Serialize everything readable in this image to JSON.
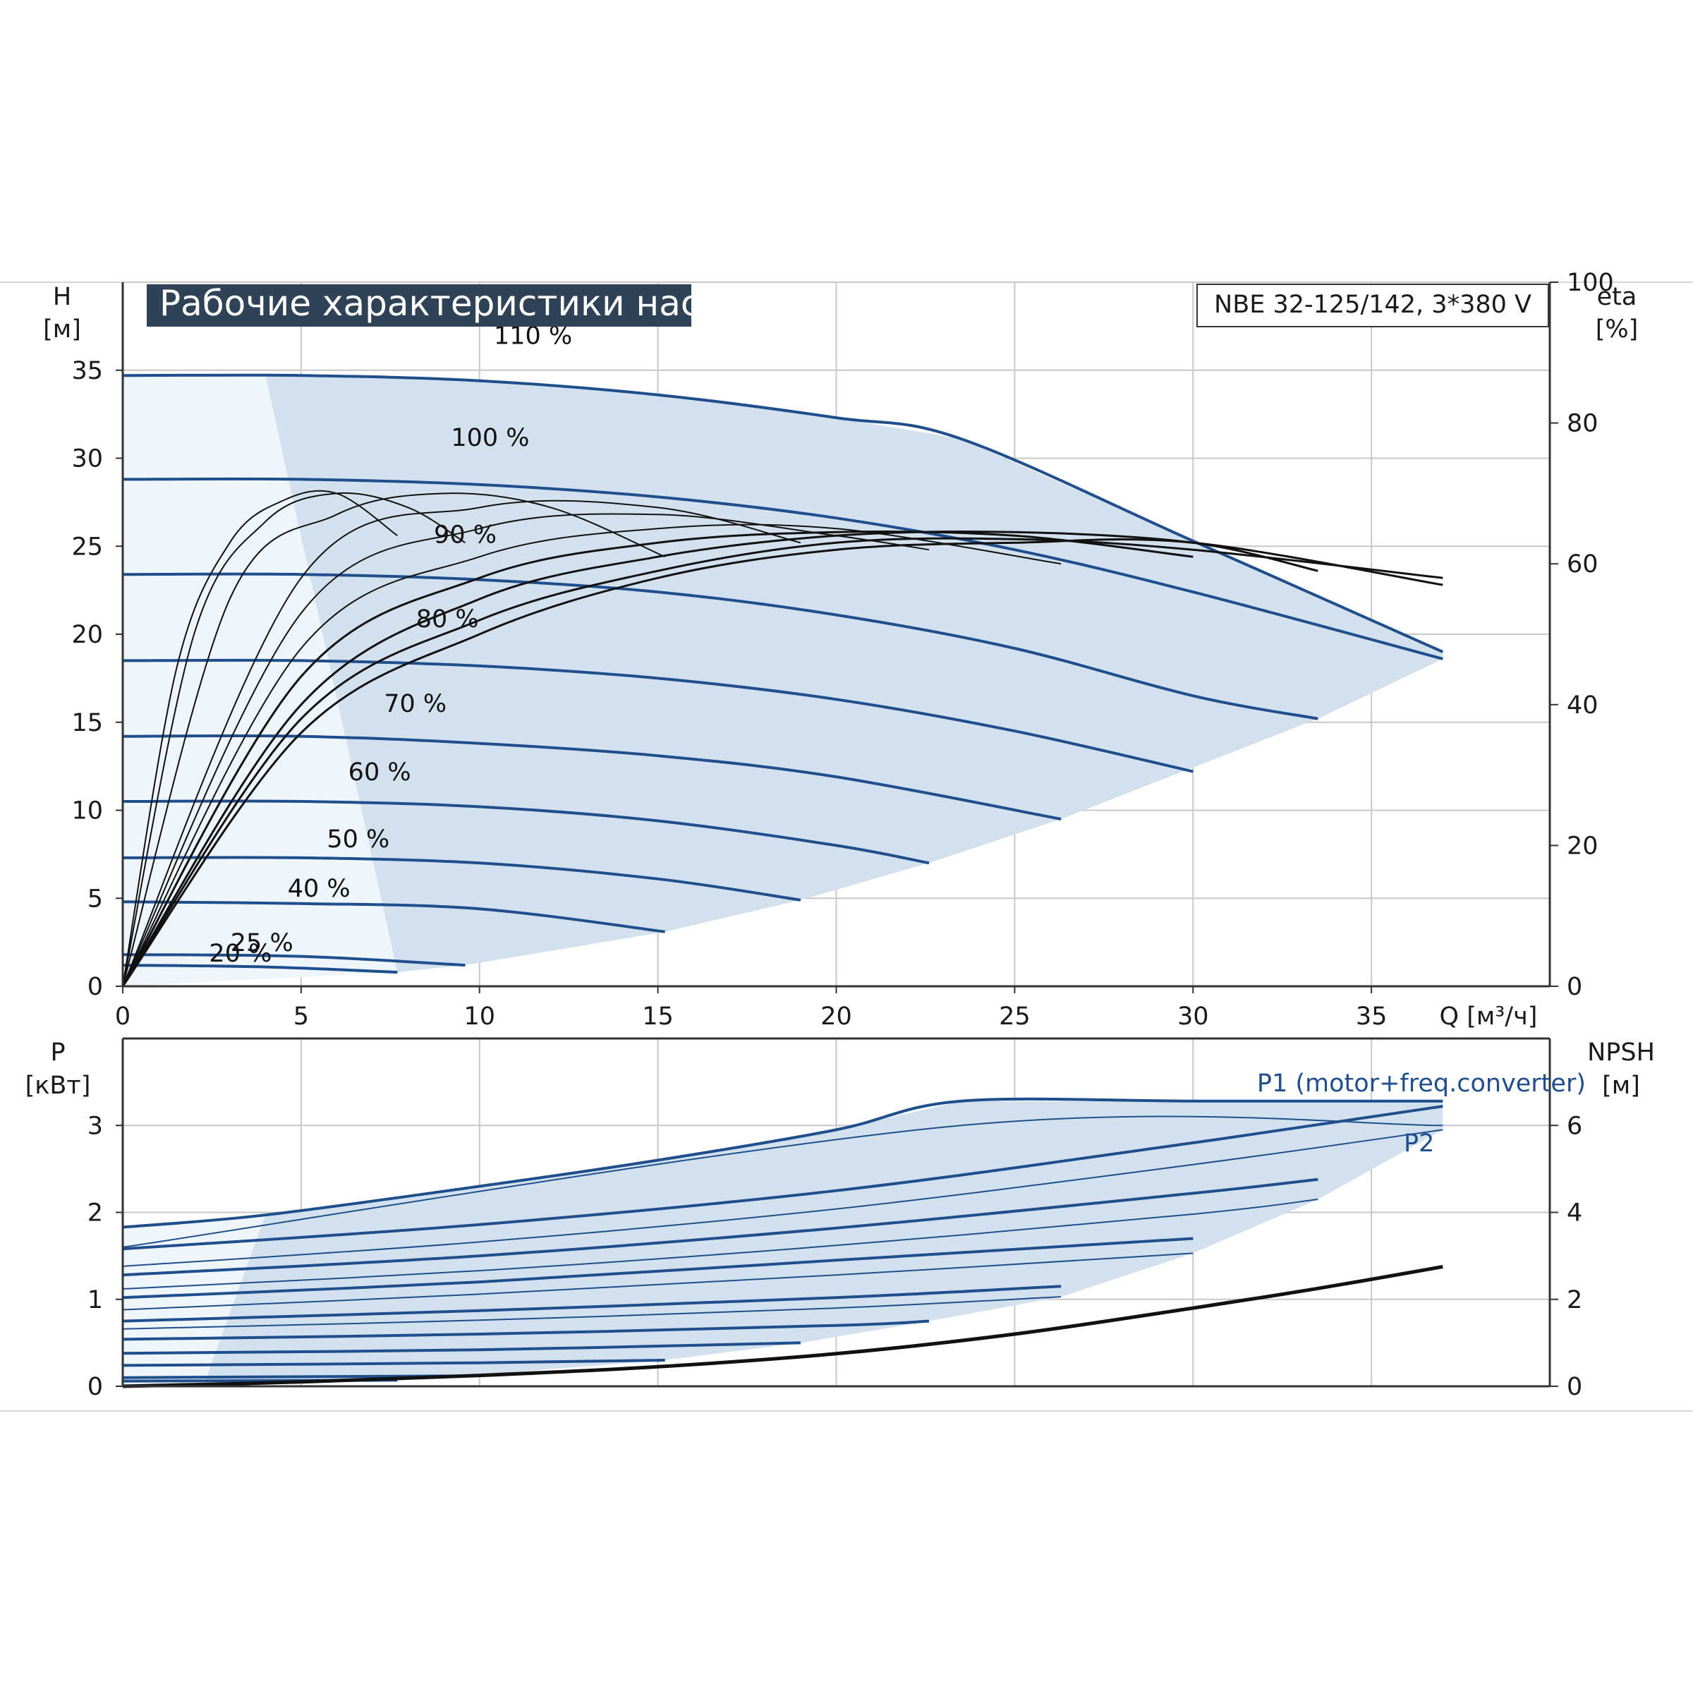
{
  "title": "Рабочие характеристики насоса",
  "model": "NBE 32-125/142, 3*380 V",
  "colors": {
    "curve_blue": "#1f4e8c",
    "envelope_fill": "#d3e1ee",
    "light_fill": "#eef5fb",
    "grid": "#c8c8c8",
    "banner": "#2f4256",
    "black": "#111111"
  },
  "chart_data": [
    {
      "type": "line",
      "name": "pump-curves",
      "xlabel": "Q [м³/ч]",
      "ylabel_name": "H",
      "ylabel_unit": "[м]",
      "y2label_name": "eta",
      "y2label_unit": "[%]",
      "xlim": [
        0,
        40
      ],
      "ylim": [
        0,
        40
      ],
      "y2lim": [
        0,
        100
      ],
      "x_ticks": [
        0,
        5,
        10,
        15,
        20,
        25,
        30,
        35
      ],
      "y_ticks": [
        0,
        5,
        10,
        15,
        20,
        25,
        30,
        35
      ],
      "y2_ticks": [
        0,
        20,
        40,
        60,
        80,
        100
      ],
      "grid": true,
      "speed_curves": [
        {
          "label": "110 %",
          "x": [
            0,
            5,
            10,
            15,
            20,
            23.5,
            30,
            37
          ],
          "y": [
            34.7,
            34.7,
            34.4,
            33.6,
            32.3,
            31.1,
            25.3,
            19.0
          ]
        },
        {
          "label": "100 %",
          "x": [
            0,
            5,
            10,
            15,
            20,
            25,
            30,
            37
          ],
          "y": [
            28.8,
            28.8,
            28.5,
            27.8,
            26.6,
            24.8,
            22.4,
            18.6
          ]
        },
        {
          "label": "90 %",
          "x": [
            0,
            5,
            10,
            15,
            20,
            25,
            30,
            33.5
          ],
          "y": [
            23.4,
            23.4,
            23.1,
            22.4,
            21.1,
            19.2,
            16.5,
            15.2
          ]
        },
        {
          "label": "80 %",
          "x": [
            0,
            5,
            10,
            15,
            20,
            25,
            30
          ],
          "y": [
            18.5,
            18.5,
            18.2,
            17.5,
            16.3,
            14.5,
            12.2
          ]
        },
        {
          "label": "70 %",
          "x": [
            0,
            5,
            10,
            15,
            20,
            26.3
          ],
          "y": [
            14.2,
            14.2,
            13.8,
            13.1,
            11.9,
            9.5
          ]
        },
        {
          "label": "60 %",
          "x": [
            0,
            5,
            10,
            15,
            20,
            22.6
          ],
          "y": [
            10.5,
            10.5,
            10.2,
            9.4,
            8.0,
            7.0
          ]
        },
        {
          "label": "50 %",
          "x": [
            0,
            5,
            10,
            15,
            19
          ],
          "y": [
            7.3,
            7.3,
            7.0,
            6.1,
            4.9
          ]
        },
        {
          "label": "40 %",
          "x": [
            0,
            5,
            10,
            15.2
          ],
          "y": [
            4.8,
            4.7,
            4.4,
            3.1
          ]
        },
        {
          "label": "25 %",
          "x": [
            0,
            5,
            9.6
          ],
          "y": [
            1.8,
            1.7,
            1.2
          ]
        },
        {
          "label": "20 %",
          "x": [
            0,
            4,
            7.7
          ],
          "y": [
            1.2,
            1.1,
            0.8
          ]
        }
      ],
      "envelope": {
        "max_x": [
          0,
          23.5,
          37,
          37
        ],
        "max_y": [
          34.7,
          31.1,
          19.0,
          18.6
        ],
        "min_x": [
          37,
          33.5,
          26.3,
          22.6,
          19,
          15.2,
          9.6,
          7.7
        ],
        "min_y": [
          18.6,
          15.2,
          9.5,
          7.0,
          4.9,
          3.1,
          1.2,
          0.8
        ]
      },
      "efficiency_curves": [
        {
          "name": "eta 110 %",
          "x": [
            0,
            5,
            10,
            15,
            20,
            25,
            30,
            37
          ],
          "eta": [
            0,
            36,
            50,
            58,
            62,
            63,
            63,
            57
          ]
        },
        {
          "name": "eta 100 %",
          "x": [
            0,
            5,
            10,
            15,
            20,
            25,
            30,
            37
          ],
          "eta": [
            0,
            38,
            52,
            59,
            63,
            63.5,
            62,
            58
          ]
        },
        {
          "name": "eta 90 %",
          "x": [
            0,
            5,
            10,
            15,
            20,
            25,
            30,
            33.5
          ],
          "eta": [
            0,
            40,
            55,
            61,
            64,
            64.5,
            63,
            59
          ]
        },
        {
          "name": "eta 80 %",
          "x": [
            0,
            5,
            10,
            15,
            20,
            25,
            30
          ],
          "eta": [
            0,
            44,
            58,
            63,
            64.5,
            64,
            61
          ]
        },
        {
          "name": "eta 70 %",
          "x": [
            0,
            5,
            10,
            15,
            20,
            26.3
          ],
          "eta": [
            0,
            48,
            61,
            65,
            65,
            60
          ]
        },
        {
          "name": "eta 60 %",
          "x": [
            0,
            5,
            10,
            15,
            20,
            22.6
          ],
          "eta": [
            0,
            53,
            65,
            67,
            64,
            62
          ]
        },
        {
          "name": "eta 50 %",
          "x": [
            0,
            5,
            10,
            15,
            19
          ],
          "eta": [
            0,
            58,
            68,
            68,
            63
          ]
        },
        {
          "name": "eta 40 %",
          "x": [
            0,
            3,
            6,
            9,
            12,
            15.2
          ],
          "eta": [
            0,
            55,
            67,
            70,
            68,
            61
          ]
        },
        {
          "name": "eta 25 %",
          "x": [
            0,
            2,
            4,
            6,
            8,
            9.6
          ],
          "eta": [
            0,
            50,
            66,
            70,
            68,
            63
          ]
        },
        {
          "name": "eta 20 %",
          "x": [
            0,
            1.5,
            3,
            4.5,
            6,
            7.7
          ],
          "eta": [
            0,
            45,
            63,
            69,
            70,
            64
          ]
        }
      ]
    },
    {
      "type": "line",
      "name": "power-npsh",
      "ylabel_name": "P",
      "ylabel_unit": "[кВт]",
      "y2label_name": "NPSH",
      "y2label_unit": "[м]",
      "xlim": [
        0,
        40
      ],
      "ylim": [
        0,
        4
      ],
      "y2lim": [
        0,
        8
      ],
      "y_ticks": [
        0,
        1,
        2,
        3
      ],
      "y2_ticks": [
        0,
        2,
        4,
        6
      ],
      "grid": true,
      "series_labels": {
        "p1": "P1 (motor+freq.converter)",
        "p2": "P2"
      },
      "p1_curves": [
        {
          "name": "110 %",
          "x": [
            0,
            4,
            10,
            15,
            20,
            23.5,
            30,
            37
          ],
          "y": [
            1.83,
            1.97,
            2.3,
            2.6,
            2.95,
            3.28,
            3.28,
            3.28
          ]
        },
        {
          "name": "100 %",
          "x": [
            0,
            10,
            20,
            30,
            37
          ],
          "y": [
            1.58,
            1.86,
            2.25,
            2.8,
            3.22
          ]
        },
        {
          "name": "90 %",
          "x": [
            0,
            10,
            20,
            30,
            33.5
          ],
          "y": [
            1.28,
            1.5,
            1.82,
            2.22,
            2.38
          ]
        },
        {
          "name": "80 %",
          "x": [
            0,
            10,
            20,
            30
          ],
          "y": [
            1.02,
            1.2,
            1.45,
            1.7
          ]
        },
        {
          "name": "70 %",
          "x": [
            0,
            10,
            20,
            26.3
          ],
          "y": [
            0.75,
            0.87,
            1.02,
            1.15
          ]
        },
        {
          "name": "60 %",
          "x": [
            0,
            10,
            20,
            22.6
          ],
          "y": [
            0.54,
            0.6,
            0.7,
            0.75
          ]
        },
        {
          "name": "50 %",
          "x": [
            0,
            10,
            19
          ],
          "y": [
            0.38,
            0.42,
            0.5
          ]
        },
        {
          "name": "40 %",
          "x": [
            0,
            10,
            15.2
          ],
          "y": [
            0.24,
            0.27,
            0.3
          ]
        },
        {
          "name": "25 %",
          "x": [
            0,
            9.6
          ],
          "y": [
            0.1,
            0.12
          ]
        },
        {
          "name": "20 %",
          "x": [
            0,
            7.7
          ],
          "y": [
            0.06,
            0.07
          ]
        }
      ],
      "p2_curves": [
        {
          "name": "110 %",
          "x": [
            0,
            23.5,
            37
          ],
          "y": [
            1.6,
            3.0,
            3.0
          ]
        },
        {
          "name": "100 %",
          "x": [
            0,
            10,
            20,
            30,
            37
          ],
          "y": [
            1.38,
            1.66,
            2.04,
            2.55,
            2.95
          ]
        },
        {
          "name": "90 %",
          "x": [
            0,
            10,
            20,
            30,
            33.5
          ],
          "y": [
            1.12,
            1.33,
            1.62,
            1.98,
            2.15
          ]
        },
        {
          "name": "80 %",
          "x": [
            0,
            10,
            20,
            30
          ],
          "y": [
            0.88,
            1.06,
            1.28,
            1.53
          ]
        },
        {
          "name": "70 %",
          "x": [
            0,
            10,
            20,
            26.3
          ],
          "y": [
            0.66,
            0.76,
            0.9,
            1.03
          ]
        }
      ],
      "npsh_curve": {
        "x": [
          0,
          5,
          10,
          15,
          20,
          25,
          30,
          33.5,
          37
        ],
        "y": [
          0,
          0.1,
          0.25,
          0.45,
          0.75,
          1.2,
          1.8,
          2.25,
          2.75
        ]
      }
    }
  ]
}
